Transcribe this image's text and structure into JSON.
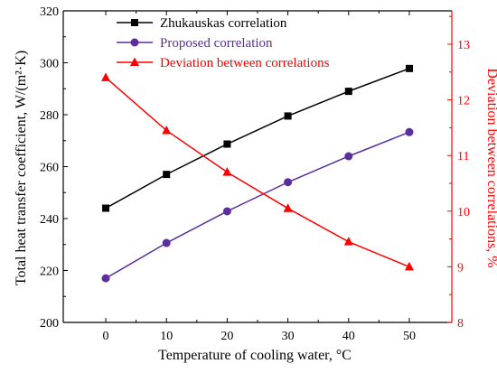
{
  "chart_data": {
    "type": "line",
    "xlabel": "Temperature of cooling water, °C",
    "ylabel_left": "Total heat transfer coefficient, W/(m²·K)",
    "ylabel_right": "Deviation between correlations, %",
    "x": [
      0,
      10,
      20,
      30,
      40,
      50
    ],
    "xlim": [
      -7,
      57
    ],
    "xticks": [
      "0",
      "10",
      "20",
      "30",
      "40",
      "50"
    ],
    "ylim_left": [
      200,
      320
    ],
    "yticks_left": [
      "200",
      "220",
      "240",
      "260",
      "280",
      "300",
      "320"
    ],
    "ylim_right": [
      8,
      13.6
    ],
    "yticks_right": [
      "8",
      "9",
      "10",
      "11",
      "12",
      "13"
    ],
    "grid": false,
    "legend_position": "top-left",
    "series": [
      {
        "name": "Zhukauskas correlation",
        "axis": "left",
        "marker": "square",
        "color": "#000000",
        "values": [
          244,
          257,
          268.7,
          279.5,
          289,
          297.8
        ]
      },
      {
        "name": "Proposed correlation",
        "axis": "left",
        "marker": "circle",
        "color": "#5b2d9e",
        "values": [
          217,
          230.6,
          242.8,
          254,
          264,
          273.3
        ]
      },
      {
        "name": "Deviation between correlations",
        "axis": "right",
        "marker": "triangle",
        "color": "#ff0000",
        "values": [
          12.4,
          11.45,
          10.7,
          10.05,
          9.45,
          9.0
        ]
      }
    ],
    "colors": {
      "axis_left": "#000000",
      "axis_right": "#ff0000"
    }
  }
}
